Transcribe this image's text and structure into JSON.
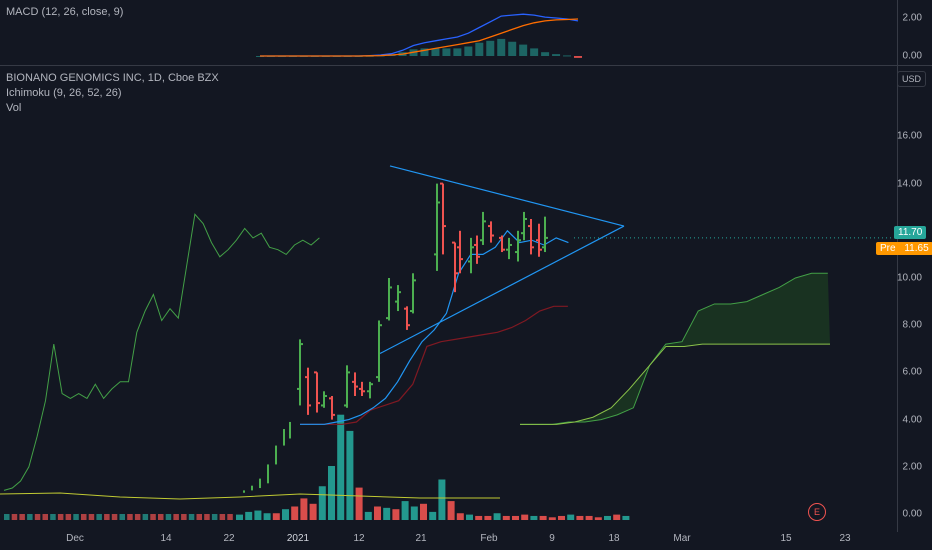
{
  "macd_pane": {
    "title": "MACD (12, 26, close, 9)",
    "y_ticks": [
      "2.00",
      "0.00"
    ],
    "colors": {
      "macd": "#2962ff",
      "signal": "#ff6d00",
      "hist_pos": "#26a69a",
      "hist_neg": "#ef5350"
    }
  },
  "main_pane": {
    "title": "BIONANO GENOMICS INC, 1D, Cboe BZX",
    "indicator": "Ichimoku (9, 26, 52, 26)",
    "volume_label": "Vol",
    "currency": "USD",
    "price_tag": "11.70",
    "pre_tag_label": "Pre",
    "pre_tag_value": "11.65",
    "earnings_marker": "E",
    "x_labels": [
      "Dec",
      "14",
      "22",
      "2021",
      "12",
      "21",
      "Feb",
      "9",
      "18",
      "Mar",
      "15",
      "23"
    ],
    "colors": {
      "up": "#26a69a",
      "up_bar": "#4caf50",
      "down": "#ef5350",
      "tenkan": "#2196f3",
      "kijun": "#801922",
      "chikou": "#43a047",
      "span_a": "#a5d6a7",
      "span_b": "#e0e0e0",
      "trendline": "#2196f3",
      "background": "#131722"
    }
  },
  "chart_data": [
    {
      "type": "line",
      "title": "MACD (12, 26, close, 9)",
      "yaxis": {
        "ticks": [
          0,
          2
        ]
      },
      "series": [
        {
          "name": "MACD",
          "values": [
            0,
            0,
            0,
            0,
            0,
            0,
            0,
            0,
            0,
            0,
            0.02,
            0.05,
            0.12,
            0.3,
            0.55,
            0.7,
            0.8,
            0.9,
            1.0,
            1.2,
            1.5,
            1.8,
            2.1,
            2.15,
            2.2,
            2.15,
            2.05,
            2.0,
            1.95,
            1.85
          ]
        },
        {
          "name": "Signal",
          "values": [
            0,
            0,
            0,
            0,
            0,
            0,
            0,
            0,
            0,
            0,
            0.01,
            0.02,
            0.05,
            0.1,
            0.2,
            0.3,
            0.4,
            0.5,
            0.6,
            0.7,
            0.8,
            1.0,
            1.2,
            1.4,
            1.6,
            1.75,
            1.85,
            1.9,
            1.92,
            1.95
          ]
        },
        {
          "name": "Histogram",
          "values": [
            0,
            0,
            0,
            0,
            0,
            0,
            0,
            0,
            0,
            0,
            0.01,
            0.03,
            0.07,
            0.2,
            0.35,
            0.4,
            0.4,
            0.4,
            0.4,
            0.5,
            0.7,
            0.8,
            0.9,
            0.75,
            0.6,
            0.4,
            0.2,
            0.1,
            0.03,
            -0.1
          ]
        }
      ]
    },
    {
      "type": "ohlc",
      "title": "BIONANO GENOMICS INC, 1D, Cboe BZX",
      "yaxis": {
        "ticks": [
          0,
          2,
          4,
          6,
          8,
          10,
          12,
          14,
          16
        ]
      },
      "x_labels": [
        "Dec",
        "14",
        "22",
        "2021",
        "12",
        "21",
        "Feb",
        "9",
        "18",
        "Mar",
        "15",
        "23"
      ],
      "bars": [
        {
          "date": "Dec 28",
          "o": 0.9,
          "h": 1.5,
          "l": 0.8,
          "c": 1.3
        },
        {
          "date": "Dec 29",
          "o": 1.3,
          "h": 2.2,
          "l": 1.2,
          "c": 2.1
        },
        {
          "date": "Dec 30",
          "o": 2.1,
          "h": 3.0,
          "l": 2.0,
          "c": 2.9
        },
        {
          "date": "Dec 31",
          "o": 3.0,
          "h": 3.8,
          "l": 2.9,
          "c": 3.6
        },
        {
          "date": "Jan 4",
          "o": 5.3,
          "h": 7.4,
          "l": 4.6,
          "c": 7.2
        },
        {
          "date": "Jan 5",
          "o": 5.8,
          "h": 6.2,
          "l": 4.2,
          "c": 4.6
        },
        {
          "date": "Jan 6",
          "o": 6.0,
          "h": 6.0,
          "l": 4.3,
          "c": 4.7
        },
        {
          "date": "Jan 7",
          "o": 4.6,
          "h": 5.2,
          "l": 4.5,
          "c": 5.0
        },
        {
          "date": "Jan 8",
          "o": 4.9,
          "h": 5.0,
          "l": 4.0,
          "c": 4.2
        },
        {
          "date": "Jan 11",
          "o": 4.6,
          "h": 6.3,
          "l": 4.5,
          "c": 6.0
        },
        {
          "date": "Jan 12",
          "o": 5.6,
          "h": 6.0,
          "l": 5.0,
          "c": 5.4
        },
        {
          "date": "Jan 13",
          "o": 5.3,
          "h": 5.6,
          "l": 5.0,
          "c": 5.2
        },
        {
          "date": "Jan 14",
          "o": 5.2,
          "h": 5.6,
          "l": 4.9,
          "c": 5.5
        },
        {
          "date": "Jan 15",
          "o": 5.8,
          "h": 8.2,
          "l": 5.6,
          "c": 8.0
        },
        {
          "date": "Jan 19",
          "o": 8.3,
          "h": 10.0,
          "l": 8.2,
          "c": 9.6
        },
        {
          "date": "Jan 20",
          "o": 9.0,
          "h": 9.7,
          "l": 8.6,
          "c": 9.4
        },
        {
          "date": "Jan 21",
          "o": 8.7,
          "h": 8.8,
          "l": 7.8,
          "c": 8.0
        },
        {
          "date": "Jan 22",
          "o": 8.6,
          "h": 10.2,
          "l": 8.5,
          "c": 9.9
        },
        {
          "date": "Jan 25",
          "o": 11.0,
          "h": 14.0,
          "l": 10.3,
          "c": 13.2
        },
        {
          "date": "Jan 26",
          "o": 14.0,
          "h": 14.0,
          "l": 11.0,
          "c": 12.2
        },
        {
          "date": "Jan 27",
          "o": 11.5,
          "h": 11.5,
          "l": 9.4,
          "c": 10.2
        },
        {
          "date": "Jan 28",
          "o": 11.3,
          "h": 12.0,
          "l": 10.2,
          "c": 10.8
        },
        {
          "date": "Jan 29",
          "o": 10.7,
          "h": 11.7,
          "l": 10.2,
          "c": 11.3
        },
        {
          "date": "Feb 1",
          "o": 11.4,
          "h": 11.8,
          "l": 10.6,
          "c": 10.9
        },
        {
          "date": "Feb 2",
          "o": 11.6,
          "h": 12.8,
          "l": 11.4,
          "c": 12.4
        },
        {
          "date": "Feb 3",
          "o": 12.2,
          "h": 12.4,
          "l": 11.5,
          "c": 11.8
        },
        {
          "date": "Feb 4",
          "o": 11.7,
          "h": 11.8,
          "l": 11.1,
          "c": 11.2
        },
        {
          "date": "Feb 5",
          "o": 11.2,
          "h": 11.7,
          "l": 10.8,
          "c": 11.4
        },
        {
          "date": "Feb 8",
          "o": 11.1,
          "h": 12.0,
          "l": 10.7,
          "c": 11.6
        },
        {
          "date": "Feb 9",
          "o": 11.9,
          "h": 12.8,
          "l": 11.6,
          "c": 12.5
        },
        {
          "date": "Feb 10",
          "o": 12.2,
          "h": 12.5,
          "l": 11.0,
          "c": 11.3
        },
        {
          "date": "Feb 11",
          "o": 11.6,
          "h": 12.3,
          "l": 10.9,
          "c": 11.2
        },
        {
          "date": "Feb 12",
          "o": 11.3,
          "h": 12.6,
          "l": 11.1,
          "c": 11.7
        }
      ],
      "ichimoku": {
        "conversion": [
          3.8,
          3.8,
          3.8,
          3.9,
          4.0,
          4.2,
          4.5,
          4.9,
          5.6,
          6.5,
          7.3,
          7.8,
          8.5,
          10.2,
          11.0,
          11.0,
          11.3,
          12.0,
          11.5,
          11.6,
          11.4,
          11.7,
          11.5
        ],
        "base": [
          3.8,
          3.8,
          3.8,
          3.8,
          3.9,
          4.4,
          4.6,
          4.8,
          5.5,
          7.1,
          7.3,
          7.4,
          7.5,
          7.6,
          7.7,
          7.9,
          8.2,
          8.6,
          8.8,
          8.8
        ],
        "span_a": [
          3.8,
          3.8,
          3.8,
          3.9,
          3.9,
          4.0,
          4.2,
          4.5,
          6.3,
          7.2,
          7.3,
          8.6,
          8.9,
          8.9,
          9.0,
          9.3,
          9.6,
          10.0,
          10.2,
          10.2
        ],
        "span_b": [
          3.8,
          3.8,
          3.8,
          3.9,
          4.1,
          4.5,
          5.3,
          6.2,
          7.1,
          7.1,
          7.2,
          7.2,
          7.2,
          7.2,
          7.2,
          7.2,
          7.2,
          7.2
        ]
      },
      "triangle": {
        "upper": [
          [
            0,
            14.7
          ],
          [
            1,
            12.0
          ]
        ],
        "lower": [
          [
            0,
            9.8
          ],
          [
            1,
            12.0
          ]
        ]
      },
      "volume_relative": [
        4,
        6,
        7,
        5,
        5,
        8,
        10,
        16,
        12,
        25,
        40,
        78,
        66,
        24,
        6,
        10,
        9,
        8,
        14,
        10,
        12,
        6,
        30,
        14,
        5,
        4,
        3,
        3,
        5,
        3,
        3,
        4,
        3,
        3,
        2,
        3,
        4,
        3,
        3,
        2,
        3,
        4,
        3
      ]
    }
  ]
}
